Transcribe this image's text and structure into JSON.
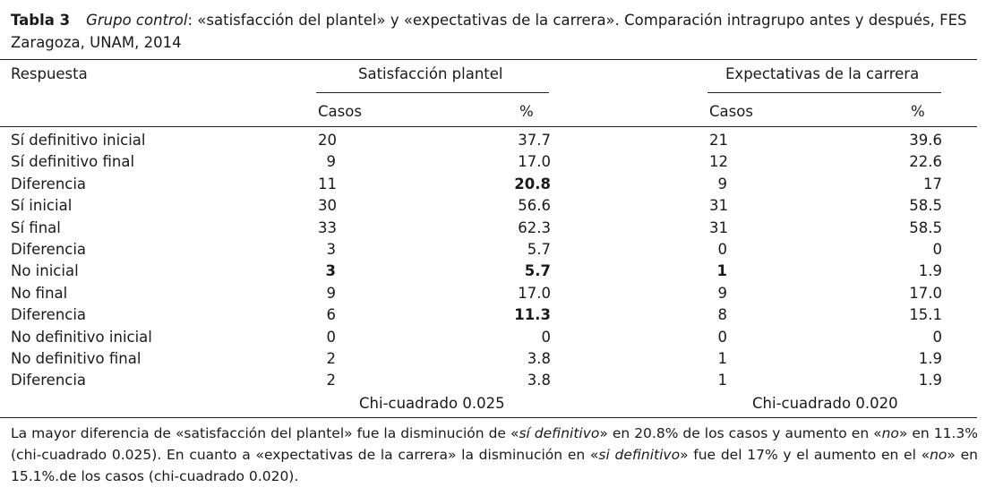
{
  "caption": {
    "label": "Tabla 3",
    "italic": "Grupo control",
    "rest": ": «satisfacción del plantel» y «expectativas de la carrera». Comparación intragrupo antes y después, FES Zaragoza, UNAM, 2014"
  },
  "headers": {
    "respuesta": "Respuesta",
    "group1": "Satisfacción plantel",
    "group2": "Expectativas de la carrera",
    "casos": "Casos",
    "pct": "%"
  },
  "rows": [
    {
      "label": "Sí definitivo inicial",
      "c1": "20",
      "p1": "37.7",
      "c2": "21",
      "p2": "39.6"
    },
    {
      "label": "Sí definitivo final",
      "c1": "9",
      "p1": "17.0",
      "c2": "12",
      "p2": "22.6"
    },
    {
      "label": "Diferencia",
      "c1": "11",
      "p1": "20.8",
      "c2": "9",
      "p2": "17"
    },
    {
      "label": "Sí inicial",
      "c1": "30",
      "p1": "56.6",
      "c2": "31",
      "p2": "58.5"
    },
    {
      "label": "Sí final",
      "c1": "33",
      "p1": "62.3",
      "c2": "31",
      "p2": "58.5"
    },
    {
      "label": "Diferencia",
      "c1": "3",
      "p1": "5.7",
      "c2": "0",
      "p2": "0"
    },
    {
      "label": "No inicial",
      "c1": "3",
      "p1": "5.7",
      "c2": "1",
      "p2": "1.9"
    },
    {
      "label": "No final",
      "c1": "9",
      "p1": "17.0",
      "c2": "9",
      "p2": "17.0"
    },
    {
      "label": "Diferencia",
      "c1": "6",
      "p1": "11.3",
      "c2": "8",
      "p2": "15.1"
    },
    {
      "label": "No definitivo inicial",
      "c1": "0",
      "p1": "0",
      "c2": "0",
      "p2": "0"
    },
    {
      "label": "No definitivo final",
      "c1": "2",
      "p1": "3.8",
      "c2": "1",
      "p2": "1.9"
    },
    {
      "label": "Diferencia",
      "c1": "2",
      "p1": "3.8",
      "c2": "1",
      "p2": "1.9"
    }
  ],
  "chi": {
    "group1": "Chi-cuadrado 0.025",
    "group2": "Chi-cuadrado 0.020"
  },
  "note": {
    "p1": "La mayor diferencia de «satisfacción del plantel» fue la disminución de «",
    "i1": "sí definitivo",
    "p2": "» en 20.8% de los casos y aumento en «",
    "i2": "no",
    "p3": "» en 11.3% (chi-cuadrado 0.025). En cuanto a «expectativas de la carrera» la disminución en «",
    "i3": "si definitivo",
    "p4": "» fue del 17% y el aumento en el «",
    "i4": "no",
    "p5": "» en 15.1%.de los casos (chi-cuadrado 0.020)."
  }
}
